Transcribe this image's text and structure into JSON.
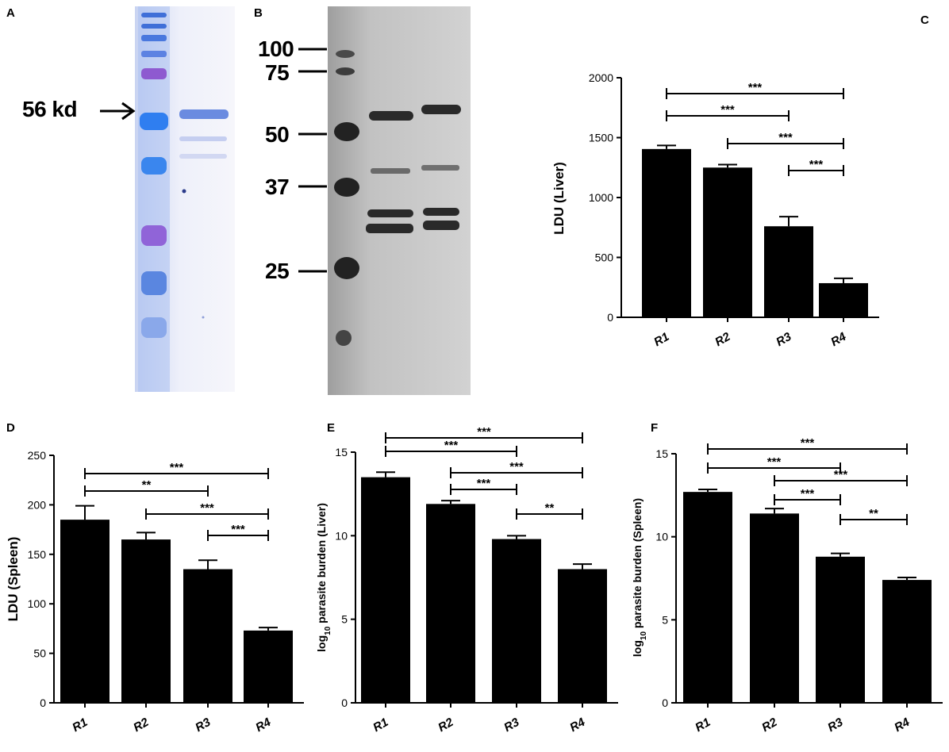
{
  "panels": {
    "a": {
      "letter": "A",
      "marker_label": "56 kd"
    },
    "b": {
      "letter": "B",
      "markers": [
        "100",
        "75",
        "50",
        "37",
        "25"
      ]
    }
  },
  "colors": {
    "bar": "#000000",
    "gel_a_bg": "#eef0fa",
    "gel_a_band": "#4f7fe0",
    "gel_b_bg": "#c8c8c8"
  },
  "chart_data": [
    {
      "id": "C",
      "letter": "C",
      "type": "bar",
      "categories": [
        "R1",
        "R2",
        "R3",
        "R4"
      ],
      "values": [
        1405,
        1250,
        760,
        285
      ],
      "errors": [
        30,
        25,
        80,
        40
      ],
      "ylabel": "LDU (Liver)",
      "ylim": [
        0,
        2000
      ],
      "yticks": [
        0,
        500,
        1000,
        1500,
        2000
      ],
      "yticklabels": [
        "0",
        "500",
        "1000",
        "1500",
        "2000"
      ],
      "sig": [
        {
          "from": "R1",
          "to": "R4",
          "label": "***"
        },
        {
          "from": "R1",
          "to": "R3",
          "label": "***"
        },
        {
          "from": "R2",
          "to": "R4",
          "label": "***"
        },
        {
          "from": "R3",
          "to": "R4",
          "label": "***"
        }
      ]
    },
    {
      "id": "D",
      "letter": "D",
      "type": "bar",
      "categories": [
        "R1",
        "R2",
        "R3",
        "R4"
      ],
      "values": [
        185,
        165,
        135,
        73
      ],
      "errors": [
        14,
        7,
        9,
        3
      ],
      "ylabel": "LDU (Spleen)",
      "ylim": [
        0,
        250
      ],
      "yticks": [
        0,
        50,
        100,
        150,
        200,
        250
      ],
      "yticklabels": [
        "0",
        "50",
        "100",
        "150",
        "200",
        "250"
      ],
      "sig": [
        {
          "from": "R1",
          "to": "R4",
          "label": "***"
        },
        {
          "from": "R1",
          "to": "R3",
          "label": "**"
        },
        {
          "from": "R2",
          "to": "R4",
          "label": "***"
        },
        {
          "from": "R3",
          "to": "R4",
          "label": "***"
        }
      ]
    },
    {
      "id": "E",
      "letter": "E",
      "type": "bar",
      "categories": [
        "R1",
        "R2",
        "R3",
        "R4"
      ],
      "values": [
        13.5,
        11.9,
        9.8,
        8.0
      ],
      "errors": [
        0.3,
        0.2,
        0.2,
        0.3
      ],
      "ylabel_prefix": "log",
      "ylabel_sub": "10",
      "ylabel_main": " parasite burden (Liver)",
      "ylim": [
        0,
        15
      ],
      "yticks": [
        0,
        5,
        10,
        15
      ],
      "yticklabels": [
        "0",
        "5",
        "10",
        "15"
      ],
      "sig": [
        {
          "from": "R1",
          "to": "R4",
          "label": "***"
        },
        {
          "from": "R1",
          "to": "R3",
          "label": "***"
        },
        {
          "from": "R2",
          "to": "R4",
          "label": "***"
        },
        {
          "from": "R2",
          "to": "R3",
          "label": "***"
        },
        {
          "from": "R3",
          "to": "R4",
          "label": "**"
        }
      ]
    },
    {
      "id": "F",
      "letter": "F",
      "type": "bar",
      "categories": [
        "R1",
        "R2",
        "R3",
        "R4"
      ],
      "values": [
        12.7,
        11.4,
        8.8,
        7.4
      ],
      "errors": [
        0.15,
        0.3,
        0.2,
        0.15
      ],
      "ylabel_prefix": "log",
      "ylabel_sub": "10",
      "ylabel_main": " parasite burden (Spleen)",
      "ylim": [
        0,
        15
      ],
      "yticks": [
        0,
        5,
        10,
        15
      ],
      "yticklabels": [
        "0",
        "5",
        "10",
        "15"
      ],
      "sig": [
        {
          "from": "R1",
          "to": "R4",
          "label": "***"
        },
        {
          "from": "R1",
          "to": "R3",
          "label": "***"
        },
        {
          "from": "R2",
          "to": "R4",
          "label": "***"
        },
        {
          "from": "R2",
          "to": "R3",
          "label": "***"
        },
        {
          "from": "R3",
          "to": "R4",
          "label": "**"
        }
      ]
    }
  ]
}
